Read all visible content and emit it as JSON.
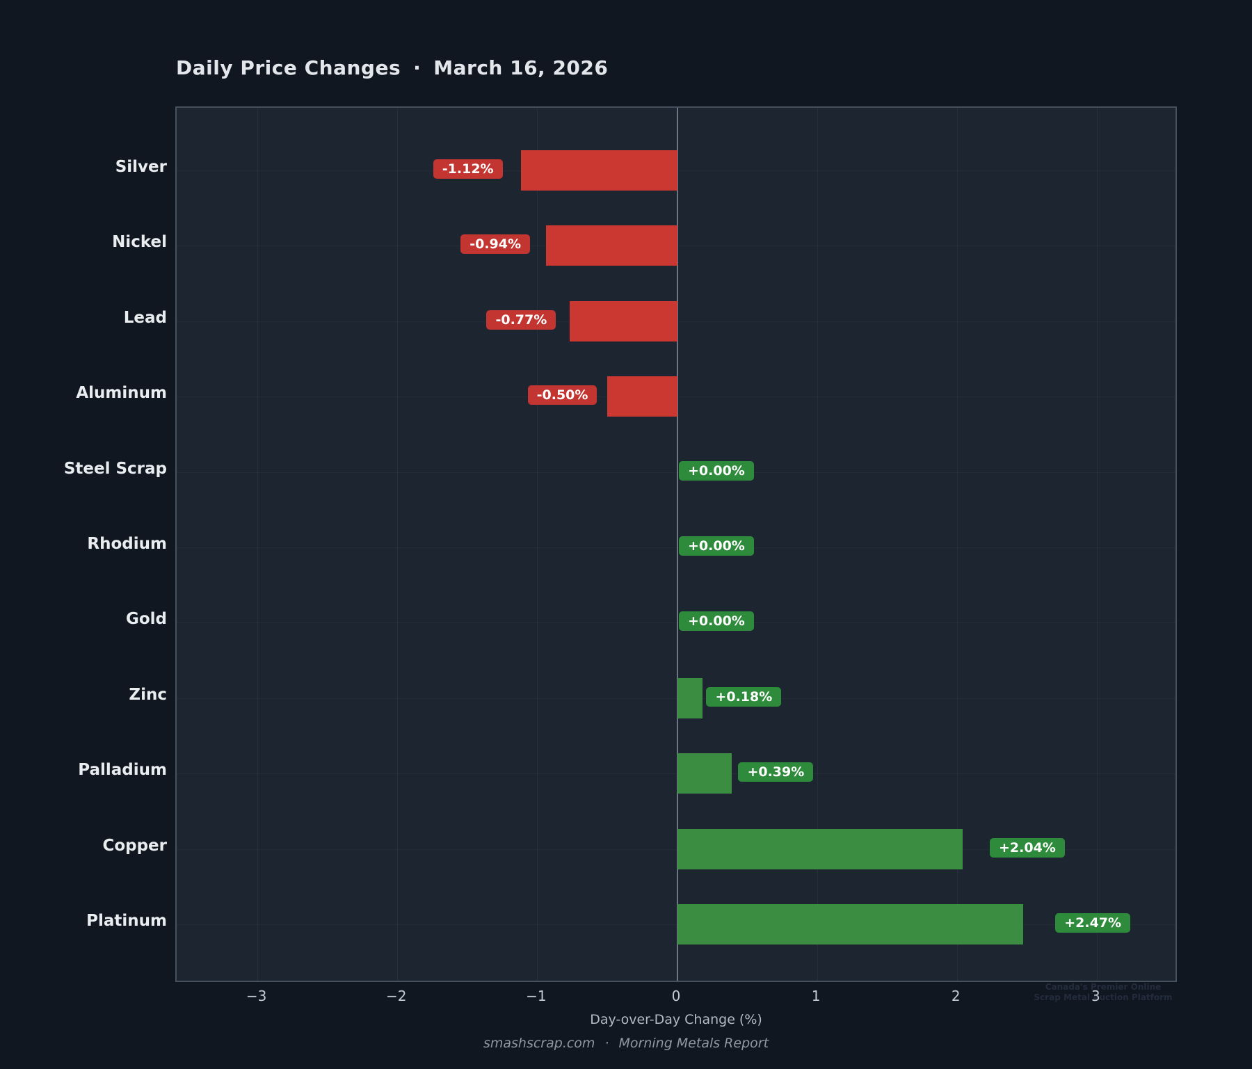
{
  "title": {
    "text": "Daily Price Changes",
    "separator": "·",
    "date": "March 16, 2026"
  },
  "chart_data": {
    "type": "bar",
    "orientation": "horizontal",
    "title": "Daily Price Changes · March 16, 2026",
    "xlabel": "Day-over-Day Change (%)",
    "ylabel": "",
    "xlim": [
      -3.58,
      3.58
    ],
    "grid": true,
    "categories": [
      "Silver",
      "Nickel",
      "Lead",
      "Aluminum",
      "Steel Scrap",
      "Rhodium",
      "Gold",
      "Zinc",
      "Palladium",
      "Copper",
      "Platinum"
    ],
    "values": [
      -1.12,
      -0.94,
      -0.77,
      -0.5,
      0.0,
      0.0,
      0.0,
      0.18,
      0.39,
      2.04,
      2.47
    ],
    "value_labels": [
      "-1.12%",
      "-0.94%",
      "-0.77%",
      "-0.50%",
      "+0.00%",
      "+0.00%",
      "+0.00%",
      "+0.18%",
      "+0.39%",
      "+2.04%",
      "+2.47%"
    ],
    "xticks": [
      -3,
      -2,
      -1,
      0,
      1,
      2,
      3
    ],
    "xtick_labels": [
      "−3",
      "−2",
      "−1",
      "0",
      "1",
      "2",
      "3"
    ],
    "colors": {
      "bar_negative": "#cb3832",
      "bar_positive": "#3b8d41",
      "badge_negative": "#c23530",
      "badge_positive": "#2f8b3c",
      "background": "#111721",
      "plot_background": "#1c2530",
      "zero_line": "#6e7884"
    }
  },
  "footer": {
    "site": "smashscrap.com",
    "separator": "·",
    "report": "Morning Metals Report"
  },
  "watermark": {
    "line1": "Canada's Premier Online",
    "line2": "Scrap Metal Auction Platform"
  }
}
